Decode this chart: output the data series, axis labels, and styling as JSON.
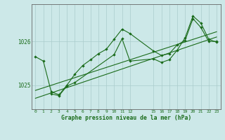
{
  "xlabel": "Graphe pression niveau de la mer (hPa)",
  "background_color": "#cce8e8",
  "grid_color": "#aacccc",
  "line_color": "#1a6b1a",
  "xlim": [
    -0.5,
    23.5
  ],
  "ylim": [
    1024.45,
    1026.85
  ],
  "yticks": [
    1025,
    1026
  ],
  "xticks": [
    0,
    1,
    2,
    3,
    4,
    5,
    6,
    7,
    8,
    9,
    10,
    11,
    12,
    15,
    16,
    17,
    18,
    19,
    20,
    21,
    22,
    23
  ],
  "series1_x": [
    0,
    1,
    2,
    3,
    4,
    5,
    6,
    7,
    8,
    9,
    10,
    11,
    12,
    15,
    16,
    17,
    18,
    19,
    20,
    21,
    22,
    23
  ],
  "series1_y": [
    1025.65,
    1025.55,
    1024.85,
    1024.78,
    1025.0,
    1025.25,
    1025.45,
    1025.58,
    1025.72,
    1025.82,
    1026.05,
    1026.28,
    1026.18,
    1025.78,
    1025.68,
    1025.72,
    1025.92,
    1026.02,
    1026.52,
    1026.32,
    1026.0,
    1026.0
  ],
  "series2_x": [
    2,
    3,
    4,
    5,
    10,
    11,
    12,
    15,
    16,
    17,
    18,
    19,
    20,
    21,
    22,
    23
  ],
  "series2_y": [
    1024.8,
    1024.76,
    1024.98,
    1025.06,
    1025.7,
    1026.06,
    1025.55,
    1025.6,
    1025.52,
    1025.58,
    1025.8,
    1026.08,
    1026.58,
    1026.42,
    1026.05,
    1025.98
  ],
  "trend1_x": [
    0,
    23
  ],
  "trend1_y": [
    1024.88,
    1026.22
  ],
  "trend2_x": [
    0,
    23
  ],
  "trend2_y": [
    1024.7,
    1026.1
  ]
}
